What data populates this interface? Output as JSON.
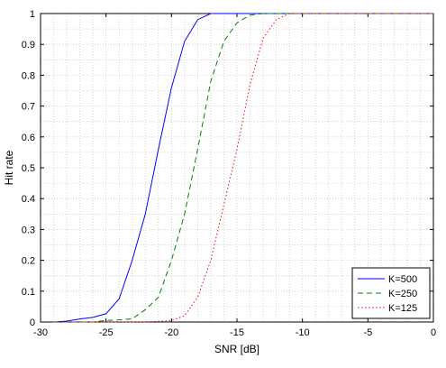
{
  "chart_data": {
    "type": "line",
    "title": "",
    "xlabel": "SNR [dB]",
    "ylabel": "Hit rate",
    "xlim": [
      -30,
      0
    ],
    "ylim": [
      0,
      1
    ],
    "x_ticks": [
      -30,
      -25,
      -20,
      -15,
      -10,
      -5,
      0
    ],
    "y_ticks": [
      0,
      0.1,
      0.2,
      0.3,
      0.4,
      0.5,
      0.6,
      0.7,
      0.8,
      0.9,
      1
    ],
    "x_tick_labels": [
      "-30",
      "-25",
      "-20",
      "-15",
      "-10",
      "-5",
      "0"
    ],
    "y_tick_labels": [
      "0",
      "0.1",
      "0.2",
      "0.3",
      "0.4",
      "0.5",
      "0.6",
      "0.7",
      "0.8",
      "0.9",
      "1"
    ],
    "grid": true,
    "legend_position": "bottom-right",
    "series": [
      {
        "name": "K=500",
        "color": "#0000ff",
        "dash": "solid",
        "x": [
          -29,
          -28,
          -27,
          -26,
          -25,
          -24,
          -23,
          -22,
          -21,
          -20,
          -19,
          -18,
          -17,
          -16,
          -15,
          -14,
          -13,
          -12,
          -11,
          -10,
          -9,
          -8,
          -7,
          -6,
          -5,
          -4,
          -3,
          -2,
          -1,
          0
        ],
        "y": [
          0,
          0.003,
          0.01,
          0.015,
          0.027,
          0.075,
          0.2,
          0.35,
          0.56,
          0.76,
          0.91,
          0.98,
          1,
          1,
          1,
          1,
          1,
          1,
          1,
          1,
          1,
          1,
          1,
          1,
          1,
          1,
          1,
          1,
          1,
          1
        ]
      },
      {
        "name": "K=250",
        "color": "#008000",
        "dash": "dashed",
        "x": [
          -29,
          -28,
          -27,
          -26,
          -25,
          -24,
          -23,
          -22,
          -21,
          -20,
          -19,
          -18,
          -17,
          -16,
          -15,
          -14,
          -13,
          -12,
          -11,
          -10,
          -9,
          -8,
          -7,
          -6,
          -5,
          -4,
          -3,
          -2,
          -1,
          0
        ],
        "y": [
          0,
          0,
          0,
          0,
          0.005,
          0.007,
          0.01,
          0.04,
          0.08,
          0.2,
          0.35,
          0.56,
          0.78,
          0.91,
          0.97,
          0.995,
          1,
          1,
          1,
          1,
          1,
          1,
          1,
          1,
          1,
          1,
          1,
          1,
          1,
          1
        ]
      },
      {
        "name": "K=125",
        "color": "#ff0000",
        "dash": "dotted",
        "x": [
          -29,
          -28,
          -27,
          -26,
          -25,
          -24,
          -23,
          -22,
          -21,
          -20,
          -19,
          -18,
          -17,
          -16,
          -15,
          -14,
          -13,
          -12,
          -11,
          -10,
          -9,
          -8,
          -7,
          -6,
          -5,
          -4,
          -3,
          -2,
          -1,
          0
        ],
        "y": [
          0,
          0,
          0,
          0,
          0,
          0,
          0,
          0,
          0.002,
          0.005,
          0.02,
          0.08,
          0.2,
          0.38,
          0.56,
          0.77,
          0.92,
          0.98,
          1,
          1,
          1,
          1,
          1,
          1,
          1,
          1,
          1,
          1,
          1,
          1
        ]
      }
    ]
  }
}
